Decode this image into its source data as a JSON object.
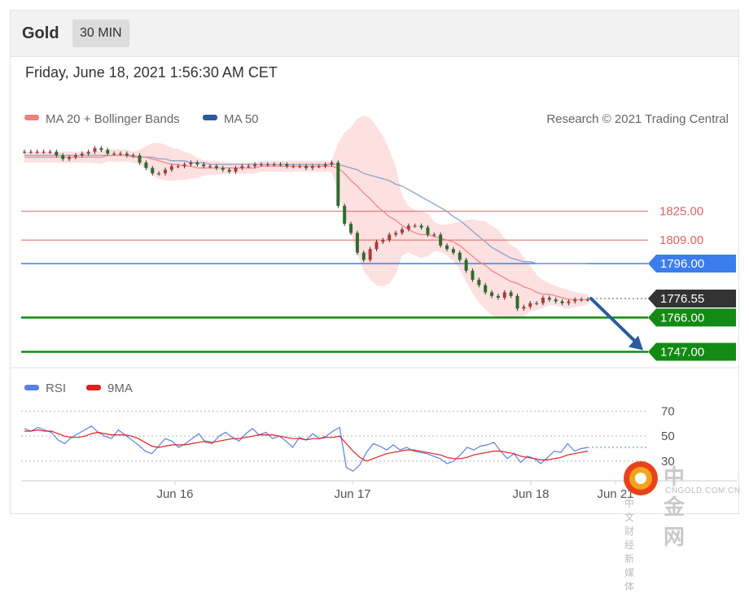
{
  "header": {
    "asset": "Gold",
    "timeframe": "30 MIN"
  },
  "timestamp": "Friday, June 18, 2021 1:56:30 AM CET",
  "legend": {
    "ma20": "MA 20 + Bollinger Bands",
    "ma50": "MA 50",
    "copyright": "Research © 2021 Trading Central",
    "rsi": "RSI",
    "rsi_ma": "9MA"
  },
  "colors": {
    "ma20": "#f08080",
    "ma50": "#2b5b9e",
    "bands": "#fde0e0",
    "resistance": "#e06060",
    "pivot": "#3b7ded",
    "support": "#138a13",
    "last": "#333333",
    "rsi": "#5b7fe0",
    "rsi_ma": "#e02020"
  },
  "chart_data": [
    {
      "type": "candlestick",
      "title": "Gold",
      "x_ticks": [
        "Jun 16",
        "Jun 17",
        "Jun 18",
        "Jun 21"
      ],
      "ylim": [
        1740,
        1870
      ],
      "close": [
        1858,
        1858,
        1858,
        1858,
        1858,
        1856,
        1854,
        1855,
        1856,
        1857,
        1858,
        1860,
        1859,
        1857,
        1857,
        1857,
        1856,
        1856,
        1852,
        1849,
        1846,
        1846,
        1848,
        1850,
        1850,
        1851,
        1852,
        1851,
        1850,
        1850,
        1849,
        1848,
        1847,
        1849,
        1850,
        1850,
        1851,
        1851,
        1851,
        1851,
        1851,
        1850,
        1850,
        1850,
        1849,
        1850,
        1850,
        1851,
        1852,
        1828,
        1818,
        1813,
        1802,
        1798,
        1804,
        1808,
        1809,
        1812,
        1813,
        1815,
        1817,
        1817,
        1816,
        1812,
        1812,
        1806,
        1804,
        1802,
        1798,
        1792,
        1787,
        1784,
        1780,
        1778,
        1777,
        1780,
        1778,
        1771,
        1772,
        1774,
        1774,
        1777,
        1776,
        1775,
        1774,
        1775,
        1776,
        1776,
        1776
      ],
      "ma20": [
        1855,
        1855,
        1855,
        1855,
        1855,
        1855,
        1855,
        1855,
        1855,
        1855,
        1855,
        1855,
        1855,
        1856,
        1856,
        1856,
        1856,
        1855,
        1855,
        1855,
        1854,
        1853,
        1852,
        1851,
        1851,
        1850,
        1850,
        1849,
        1849,
        1849,
        1849,
        1849,
        1849,
        1849,
        1849,
        1849,
        1849,
        1850,
        1850,
        1850,
        1850,
        1850,
        1850,
        1850,
        1850,
        1850,
        1850,
        1850,
        1850,
        1849,
        1846,
        1842,
        1839,
        1835,
        1832,
        1828,
        1825,
        1822,
        1820,
        1817,
        1815,
        1813,
        1812,
        1812,
        1811,
        1810,
        1809,
        1808,
        1806,
        1803,
        1800,
        1797,
        1795,
        1792,
        1790,
        1788,
        1786,
        1785,
        1783,
        1782,
        1780,
        1779,
        1779,
        1778,
        1777,
        1776,
        1776,
        1776,
        1776
      ],
      "ma50": [
        1856,
        1856,
        1856,
        1856,
        1856,
        1856,
        1856,
        1856,
        1856,
        1856,
        1856,
        1856,
        1856,
        1856,
        1856,
        1856,
        1856,
        1856,
        1855,
        1855,
        1855,
        1854,
        1854,
        1853,
        1853,
        1853,
        1852,
        1852,
        1852,
        1851,
        1851,
        1851,
        1851,
        1851,
        1851,
        1851,
        1851,
        1851,
        1851,
        1851,
        1851,
        1851,
        1851,
        1851,
        1851,
        1851,
        1851,
        1851,
        1851,
        1851,
        1850,
        1849,
        1848,
        1846,
        1845,
        1844,
        1843,
        1842,
        1840,
        1839,
        1837,
        1835,
        1833,
        1831,
        1829,
        1827,
        1825,
        1822,
        1820,
        1817,
        1814,
        1811,
        1808,
        1805,
        1803,
        1801,
        1799,
        1798,
        1797,
        1797,
        1796,
        1796,
        1796,
        1796,
        1796,
        1796,
        1796,
        1796,
        1796
      ],
      "levels": {
        "resistance": [
          "1825.00",
          "1809.00"
        ],
        "pivot": "1796.00",
        "last": "1776.55",
        "support": [
          "1766.00",
          "1747.00"
        ]
      }
    },
    {
      "type": "line",
      "title": "RSI",
      "ylim": [
        15,
        80
      ],
      "y_ticks": [
        "70",
        "50",
        "30"
      ],
      "series": [
        {
          "name": "RSI",
          "values": [
            56,
            54,
            57,
            55,
            53,
            47,
            44,
            49,
            52,
            55,
            58,
            53,
            50,
            48,
            55,
            51,
            47,
            43,
            38,
            36,
            42,
            48,
            46,
            41,
            44,
            48,
            52,
            45,
            44,
            50,
            53,
            49,
            46,
            52,
            56,
            51,
            53,
            48,
            50,
            46,
            41,
            49,
            47,
            52,
            48,
            50,
            54,
            57,
            25,
            22,
            27,
            37,
            44,
            42,
            39,
            43,
            39,
            41,
            38,
            37,
            36,
            34,
            32,
            28,
            30,
            35,
            41,
            39,
            42,
            43,
            45,
            38,
            32,
            36,
            29,
            34,
            32,
            28,
            33,
            38,
            37,
            44,
            38,
            40,
            41
          ]
        },
        {
          "name": "9MA",
          "values": [
            54,
            54,
            55,
            54,
            54,
            52,
            50,
            49,
            49,
            50,
            52,
            53,
            52,
            51,
            51,
            51,
            50,
            48,
            45,
            42,
            41,
            42,
            43,
            43,
            43,
            44,
            45,
            46,
            45,
            46,
            47,
            48,
            48,
            49,
            50,
            51,
            51,
            51,
            50,
            49,
            48,
            48,
            47,
            48,
            48,
            49,
            49,
            50,
            44,
            38,
            33,
            30,
            32,
            34,
            36,
            37,
            38,
            39,
            39,
            38,
            37,
            36,
            35,
            33,
            32,
            32,
            33,
            35,
            36,
            37,
            38,
            38,
            37,
            36,
            34,
            33,
            32,
            31,
            31,
            32,
            33,
            35,
            36,
            37,
            38
          ]
        }
      ]
    }
  ]
}
